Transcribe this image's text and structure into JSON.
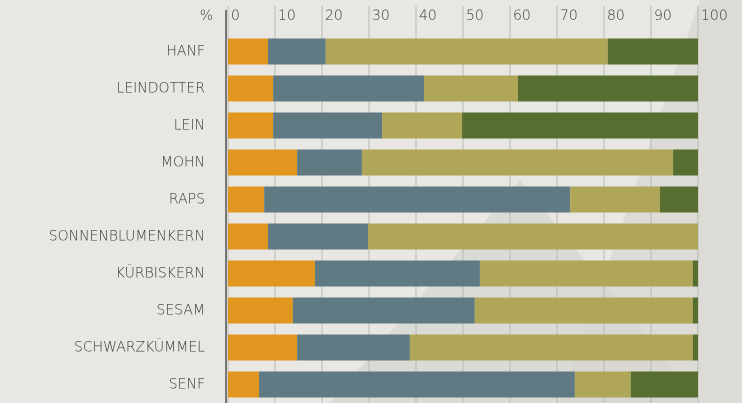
{
  "chart_data": {
    "type": "stacked-barh",
    "xlabel": "%",
    "categories": [
      "HANF",
      "LEINDOTTER",
      "LEIN",
      "MOHN",
      "RAPS",
      "SONNENBLUMENKERN",
      "KÜRBISKERN",
      "SESAM",
      "SCHWARZKÜMMEL",
      "SENF"
    ],
    "series": [
      {
        "color": "#e0961f",
        "values": [
          8.5,
          9.6,
          9.6,
          14.7,
          7.7,
          8.5,
          18.5,
          13.8,
          14.7,
          6.6
        ]
      },
      {
        "color": "#5f7a82",
        "values": [
          12.3,
          32.1,
          23.2,
          13.8,
          65.1,
          21.3,
          35.1,
          38.7,
          24,
          67.2
        ]
      },
      {
        "color": "#b0a658",
        "values": [
          60,
          20,
          17,
          66.2,
          19.1,
          70.2,
          45.3,
          46.4,
          60.2,
          11.9
        ]
      },
      {
        "color": "#566e2f",
        "values": [
          19.2,
          38.3,
          50.2,
          5.3,
          8.1,
          0,
          1.1,
          1.1,
          1.1,
          14.3
        ]
      }
    ],
    "xlim": [
      0,
      100
    ],
    "xticks": [
      0,
      10,
      20,
      30,
      40,
      50,
      60,
      70,
      80,
      90,
      100
    ],
    "grid": true
  }
}
